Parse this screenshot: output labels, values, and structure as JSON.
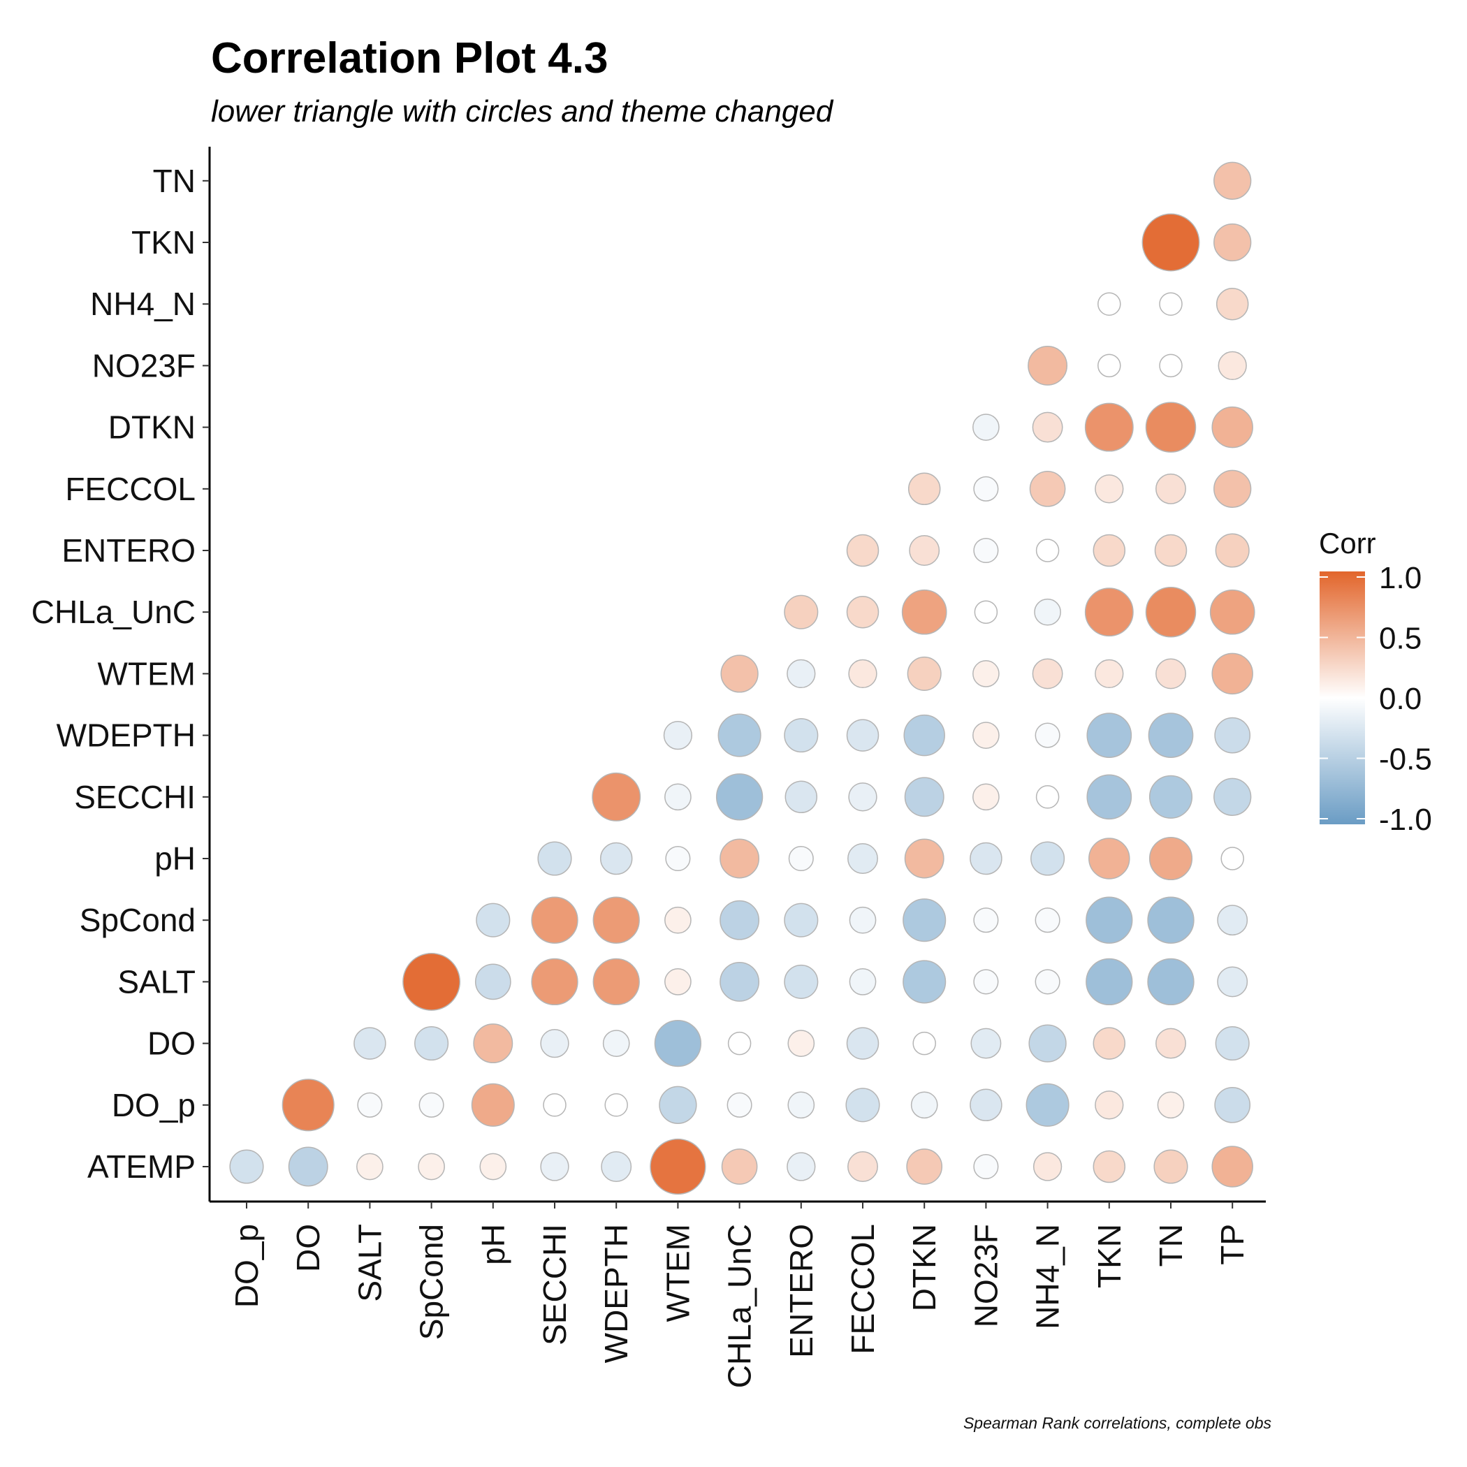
{
  "chart_data": {
    "type": "heatmap",
    "title": "Correlation Plot 4.3",
    "subtitle": "lower triangle with circles and theme changed",
    "caption": "Spearman Rank correlations, complete obs",
    "x_categories": [
      "DO_p",
      "DO",
      "SALT",
      "SpCond",
      "pH",
      "SECCHI",
      "WDEPTH",
      "WTEM",
      "CHLa_UnC",
      "ENTERO",
      "FECCOL",
      "DTKN",
      "NO23F",
      "NH4_N",
      "TKN",
      "TN",
      "TP"
    ],
    "y_categories": [
      "ATEMP",
      "DO_p",
      "DO",
      "SALT",
      "SpCond",
      "pH",
      "SECCHI",
      "WDEPTH",
      "WTEM",
      "CHLa_UnC",
      "ENTERO",
      "FECCOL",
      "DTKN",
      "NO23F",
      "NH4_N",
      "TKN",
      "TN"
    ],
    "values": [
      [
        -0.3,
        -0.45,
        0.1,
        0.1,
        0.1,
        -0.15,
        -0.2,
        0.9,
        0.35,
        -0.15,
        0.2,
        0.35,
        -0.05,
        0.15,
        0.25,
        0.3,
        0.5
      ],
      [
        null,
        0.8,
        -0.05,
        -0.05,
        0.55,
        0.0,
        0.0,
        -0.4,
        -0.05,
        -0.1,
        -0.3,
        -0.1,
        -0.25,
        -0.55,
        0.15,
        0.1,
        -0.35
      ],
      [
        null,
        null,
        -0.25,
        -0.3,
        0.45,
        -0.15,
        -0.1,
        -0.65,
        0.0,
        0.1,
        -0.25,
        0.0,
        -0.2,
        -0.4,
        0.25,
        0.2,
        -0.3
      ],
      [
        null,
        null,
        null,
        0.95,
        -0.35,
        0.65,
        0.65,
        0.1,
        -0.45,
        -0.3,
        -0.1,
        -0.55,
        -0.05,
        -0.05,
        -0.65,
        -0.65,
        -0.2
      ],
      [
        null,
        null,
        null,
        null,
        -0.3,
        0.65,
        0.65,
        0.1,
        -0.45,
        -0.3,
        -0.1,
        -0.55,
        -0.05,
        -0.05,
        -0.65,
        -0.65,
        -0.2
      ],
      [
        null,
        null,
        null,
        null,
        null,
        -0.3,
        -0.25,
        -0.05,
        0.45,
        -0.05,
        -0.2,
        0.45,
        -0.25,
        -0.3,
        0.5,
        0.55,
        0.0
      ],
      [
        null,
        null,
        null,
        null,
        null,
        null,
        0.7,
        -0.1,
        -0.65,
        -0.25,
        -0.15,
        -0.45,
        0.1,
        0.0,
        -0.6,
        -0.55,
        -0.4
      ],
      [
        null,
        null,
        null,
        null,
        null,
        null,
        null,
        -0.15,
        -0.55,
        -0.3,
        -0.25,
        -0.5,
        0.1,
        -0.05,
        -0.6,
        -0.6,
        -0.35
      ],
      [
        null,
        null,
        null,
        null,
        null,
        null,
        null,
        null,
        0.4,
        -0.15,
        0.15,
        0.3,
        0.1,
        0.2,
        0.15,
        0.2,
        0.5
      ],
      [
        null,
        null,
        null,
        null,
        null,
        null,
        null,
        null,
        null,
        0.3,
        0.25,
        0.6,
        0.0,
        -0.1,
        0.7,
        0.75,
        0.6
      ],
      [
        null,
        null,
        null,
        null,
        null,
        null,
        null,
        null,
        null,
        null,
        0.25,
        0.2,
        -0.05,
        0.0,
        0.25,
        0.25,
        0.3
      ],
      [
        null,
        null,
        null,
        null,
        null,
        null,
        null,
        null,
        null,
        null,
        null,
        0.25,
        -0.05,
        0.35,
        0.15,
        0.2,
        0.4
      ],
      [
        null,
        null,
        null,
        null,
        null,
        null,
        null,
        null,
        null,
        null,
        null,
        null,
        -0.1,
        0.2,
        0.7,
        0.75,
        0.5
      ],
      [
        null,
        null,
        null,
        null,
        null,
        null,
        null,
        null,
        null,
        null,
        null,
        null,
        null,
        0.45,
        0.0,
        0.0,
        0.15
      ],
      [
        null,
        null,
        null,
        null,
        null,
        null,
        null,
        null,
        null,
        null,
        null,
        null,
        null,
        null,
        0.0,
        0.0,
        0.25
      ],
      [
        null,
        null,
        null,
        null,
        null,
        null,
        null,
        null,
        null,
        null,
        null,
        null,
        null,
        null,
        null,
        0.95,
        0.4
      ],
      [
        null,
        null,
        null,
        null,
        null,
        null,
        null,
        null,
        null,
        null,
        null,
        null,
        null,
        null,
        null,
        null,
        0.4
      ]
    ],
    "legend": {
      "title": "Corr",
      "ticks": [
        "1.0",
        "0.5",
        "0.0",
        "-0.5",
        "-1.0"
      ],
      "placement": "right"
    },
    "colors": {
      "negative": "#6a9cc4",
      "zero": "#ffffff",
      "positive": "#e2652b",
      "circle_outline": "#b5b5b5"
    },
    "value_range": [
      -1,
      1
    ],
    "grid": false
  }
}
